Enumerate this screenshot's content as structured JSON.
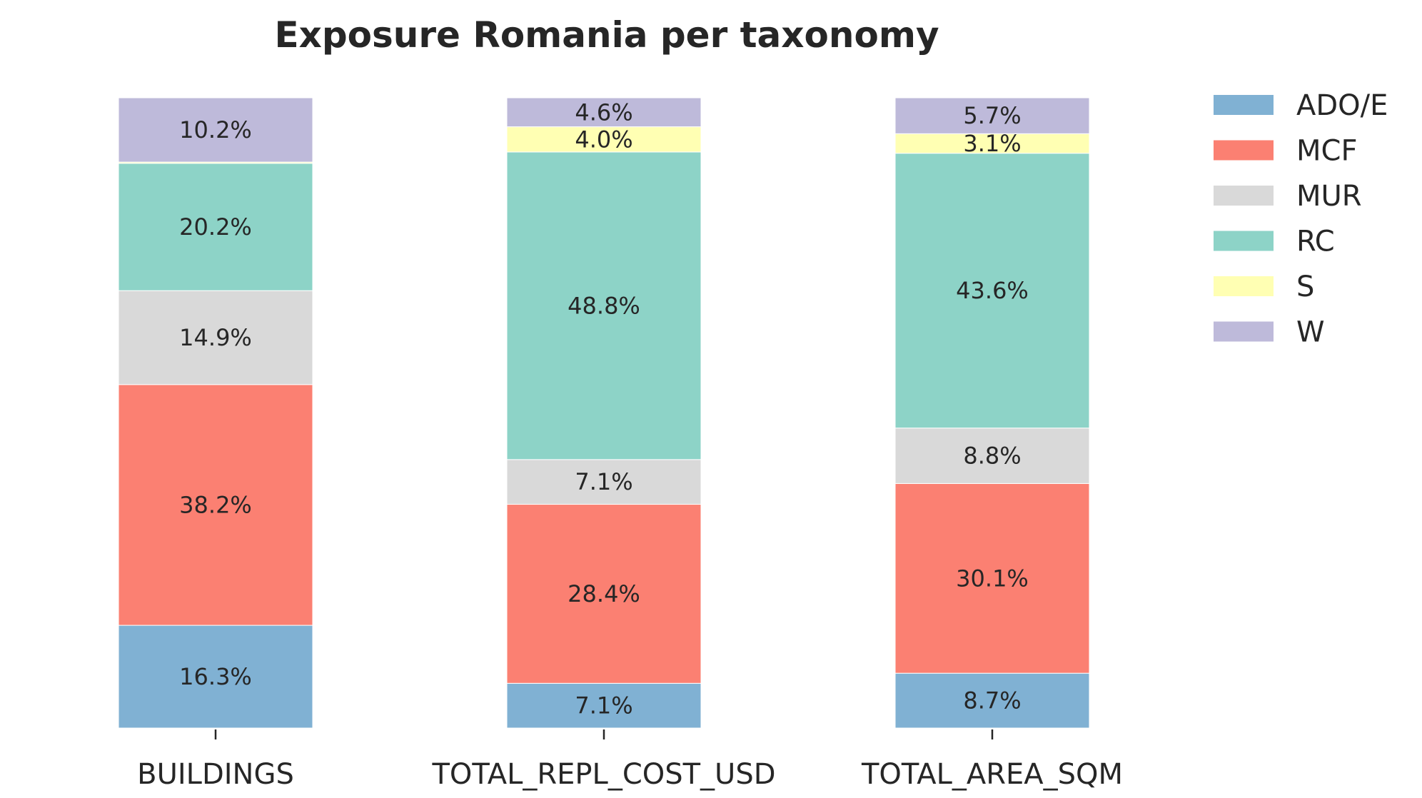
{
  "chart_data": {
    "type": "bar",
    "stacked": true,
    "normalized_percent": true,
    "title": "Exposure Romania per taxonomy",
    "xlabel": "",
    "ylabel": "",
    "ylim": [
      0,
      100
    ],
    "grid": false,
    "legend_position": "top-right outside",
    "categories": [
      "BUILDINGS",
      "TOTAL_REPL_COST_USD",
      "TOTAL_AREA_SQM"
    ],
    "series": [
      {
        "name": "ADO/E",
        "color": "#80b1d3",
        "values": [
          16.3,
          7.1,
          8.7
        ]
      },
      {
        "name": "MCF",
        "color": "#fb8072",
        "values": [
          38.2,
          28.4,
          30.1
        ]
      },
      {
        "name": "MUR",
        "color": "#d9d9d9",
        "values": [
          14.9,
          7.1,
          8.8
        ]
      },
      {
        "name": "RC",
        "color": "#8dd3c7",
        "values": [
          20.2,
          48.8,
          43.6
        ]
      },
      {
        "name": "S",
        "color": "#ffffb3",
        "values": [
          0.2,
          4.0,
          3.1
        ]
      },
      {
        "name": "W",
        "color": "#bebada",
        "values": [
          10.2,
          4.6,
          5.7
        ]
      }
    ],
    "labels": [
      [
        "16.3%",
        "7.1%",
        "8.7%"
      ],
      [
        "38.2%",
        "28.4%",
        "30.1%"
      ],
      [
        "14.9%",
        "7.1%",
        "8.8%"
      ],
      [
        "20.2%",
        "48.8%",
        "43.6%"
      ],
      [
        "",
        "4.0%",
        "3.1%"
      ],
      [
        "10.2%",
        "4.6%",
        "5.7%"
      ]
    ]
  }
}
